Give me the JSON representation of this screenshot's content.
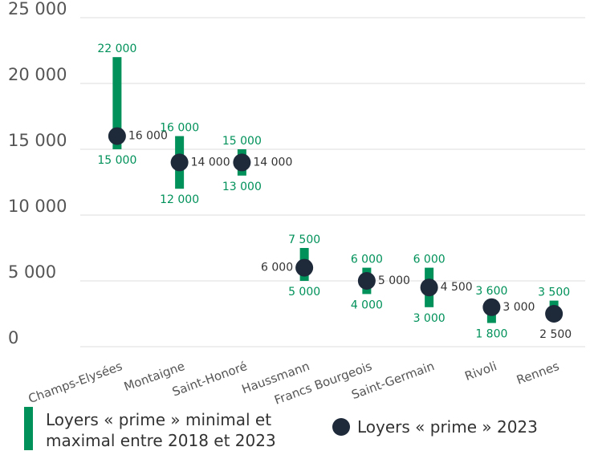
{
  "chart_data": {
    "type": "range",
    "categories": [
      "Champs-Elysées",
      "Montaigne",
      "Saint-Honoré",
      "Haussmann",
      "Francs Bourgeois",
      "Saint-Germain",
      "Rivoli",
      "Rennes"
    ],
    "series": [
      {
        "name": "Loyers « prime » minimal et maximal entre 2018 et 2023",
        "color": "#00915a",
        "low": [
          15000,
          12000,
          13000,
          5000,
          4000,
          3000,
          1800,
          2500
        ],
        "high": [
          22000,
          16000,
          15000,
          7500,
          6000,
          6000,
          3600,
          3500
        ],
        "low_labels": [
          "15 000",
          "12 000",
          "13 000",
          "5 000",
          "4 000",
          "3 000",
          "1 800",
          null
        ],
        "high_labels": [
          "22 000",
          "16 000",
          "15 000",
          "7 500",
          "6 000",
          "6 000",
          "3 600",
          "3 500"
        ]
      },
      {
        "name": "Loyers « prime » 2023",
        "color": "#1e2a3a",
        "values": [
          16000,
          14000,
          14000,
          6000,
          5000,
          4500,
          3000,
          2500
        ],
        "value_labels": [
          "16 000",
          "14 000",
          "14 000",
          "6 000",
          "5 000",
          "4 500",
          "3 000",
          "2 500"
        ]
      }
    ],
    "ylim": [
      0,
      25000
    ],
    "yticks": [
      0,
      {
        "value": 5000,
        "label": "5 000"
      },
      {
        "value": 10000,
        "label": "10 000"
      },
      {
        "value": 15000,
        "label": "15 000"
      },
      {
        "value": 20000,
        "label": "20 000"
      },
      {
        "value": 25000,
        "label": "25 000"
      }
    ],
    "grid": true
  }
}
